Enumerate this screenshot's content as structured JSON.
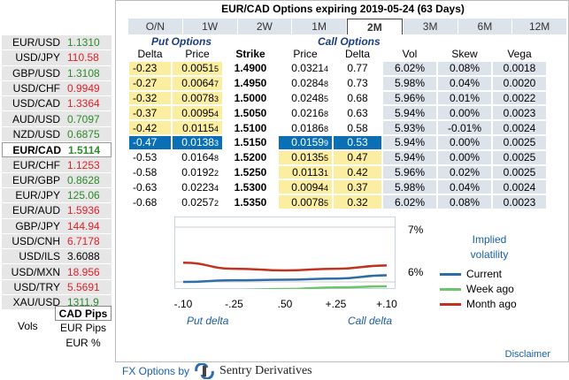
{
  "title": "EUR/CAD Options expiring 2019-05-24 (63 Days)",
  "tabs": [
    "O/N",
    "1W",
    "2W",
    "1M",
    "2M",
    "3M",
    "6M",
    "12M"
  ],
  "active_tab": "2M",
  "sidebar": {
    "pairs": [
      {
        "name": "EUR/USD",
        "value": "1.1310",
        "dir": "up"
      },
      {
        "name": "USD/JPY",
        "value": "110.58",
        "dir": "down"
      },
      {
        "name": "GBP/USD",
        "value": "1.3108",
        "dir": "up"
      },
      {
        "name": "USD/CHF",
        "value": "0.9949",
        "dir": "down"
      },
      {
        "name": "USD/CAD",
        "value": "1.3364",
        "dir": "down"
      },
      {
        "name": "AUD/USD",
        "value": "0.7097",
        "dir": "up"
      },
      {
        "name": "NZD/USD",
        "value": "0.6875",
        "dir": "up"
      },
      {
        "name": "EUR/CAD",
        "value": "1.5114",
        "dir": "up",
        "active": true
      },
      {
        "name": "EUR/CHF",
        "value": "1.1253",
        "dir": "down"
      },
      {
        "name": "EUR/GBP",
        "value": "0.8628",
        "dir": "up"
      },
      {
        "name": "EUR/JPY",
        "value": "125.06",
        "dir": "up"
      },
      {
        "name": "EUR/AUD",
        "value": "1.5936",
        "dir": "down"
      },
      {
        "name": "GBP/JPY",
        "value": "144.94",
        "dir": "down"
      },
      {
        "name": "USD/CNH",
        "value": "6.7178",
        "dir": "down"
      },
      {
        "name": "USD/ILS",
        "value": "3.6088",
        "dir": "neutral"
      },
      {
        "name": "USD/MXN",
        "value": "18.956",
        "dir": "down"
      },
      {
        "name": "USD/TRY",
        "value": "5.5691",
        "dir": "down"
      },
      {
        "name": "XAU/USD",
        "value": "1311.9",
        "dir": "up"
      }
    ],
    "vols_label": "Vols",
    "quote_options": [
      "CAD Pips",
      "EUR Pips",
      "EUR %"
    ],
    "selected_quote": "CAD Pips"
  },
  "table": {
    "put_header": "Put Options",
    "call_header": "Call Options",
    "columns": [
      "Delta",
      "Price",
      "Strike",
      "Price",
      "Delta",
      "Vol",
      "Skew",
      "Vega"
    ],
    "rows": [
      {
        "pdelta": "-0.23",
        "pprice": "0.0051",
        "pprice_s": "5",
        "strike": "1.4900",
        "cprice": "0.0321",
        "cprice_s": "4",
        "cdelta": "0.77",
        "vol": "6.02%",
        "skew": "0.08%",
        "vega": "0.0018",
        "side": "put"
      },
      {
        "pdelta": "-0.27",
        "pprice": "0.0064",
        "pprice_s": "7",
        "strike": "1.4950",
        "cprice": "0.0284",
        "cprice_s": "8",
        "cdelta": "0.73",
        "vol": "5.98%",
        "skew": "0.04%",
        "vega": "0.0020",
        "side": "put"
      },
      {
        "pdelta": "-0.32",
        "pprice": "0.0078",
        "pprice_s": "3",
        "strike": "1.5000",
        "cprice": "0.0248",
        "cprice_s": "5",
        "cdelta": "0.68",
        "vol": "5.96%",
        "skew": "0.01%",
        "vega": "0.0022",
        "side": "put"
      },
      {
        "pdelta": "-0.37",
        "pprice": "0.0095",
        "pprice_s": "4",
        "strike": "1.5050",
        "cprice": "0.0216",
        "cprice_s": "8",
        "cdelta": "0.63",
        "vol": "5.94%",
        "skew": "0.00%",
        "vega": "0.0023",
        "side": "put"
      },
      {
        "pdelta": "-0.42",
        "pprice": "0.0115",
        "pprice_s": "4",
        "strike": "1.5100",
        "cprice": "0.0186",
        "cprice_s": "8",
        "cdelta": "0.58",
        "vol": "5.93%",
        "skew": "-0.01%",
        "vega": "0.0024",
        "side": "put"
      },
      {
        "pdelta": "-0.47",
        "pprice": "0.0138",
        "pprice_s": "3",
        "strike": "1.5150",
        "cprice": "0.0159",
        "cprice_s": "9",
        "cdelta": "0.53",
        "vol": "5.94%",
        "skew": "0.00%",
        "vega": "0.0025",
        "side": "atm"
      },
      {
        "pdelta": "-0.53",
        "pprice": "0.0164",
        "pprice_s": "8",
        "strike": "1.5200",
        "cprice": "0.0135",
        "cprice_s": "5",
        "cdelta": "0.47",
        "vol": "5.94%",
        "skew": "0.00%",
        "vega": "0.0025",
        "side": "call"
      },
      {
        "pdelta": "-0.58",
        "pprice": "0.0192",
        "pprice_s": "2",
        "strike": "1.5250",
        "cprice": "0.0113",
        "cprice_s": "1",
        "cdelta": "0.42",
        "vol": "5.96%",
        "skew": "0.02%",
        "vega": "0.0025",
        "side": "call"
      },
      {
        "pdelta": "-0.63",
        "pprice": "0.0223",
        "pprice_s": "4",
        "strike": "1.5300",
        "cprice": "0.0094",
        "cprice_s": "4",
        "cdelta": "0.37",
        "vol": "5.98%",
        "skew": "0.04%",
        "vega": "0.0024",
        "side": "call"
      },
      {
        "pdelta": "-0.68",
        "pprice": "0.0257",
        "pprice_s": "2",
        "strike": "1.5350",
        "cprice": "0.0078",
        "cprice_s": "5",
        "cdelta": "0.32",
        "vol": "6.02%",
        "skew": "0.08%",
        "vega": "0.0023",
        "side": "call"
      }
    ]
  },
  "chart_data": {
    "type": "line",
    "x": [
      -0.1,
      -0.25,
      0.5,
      0.25,
      0.1
    ],
    "x_tick_labels": [
      "-.10",
      "-.25",
      ".50",
      "+.25",
      "+.10"
    ],
    "ylim": [
      6,
      7
    ],
    "y_tick_labels": [
      "7%",
      "6%"
    ],
    "series": [
      {
        "name": "Current",
        "color": "#2e6da8",
        "values": [
          6.0,
          6.03,
          6.04,
          6.06,
          6.12
        ]
      },
      {
        "name": "Week ago",
        "color": "#6cc56c",
        "values": [
          5.82,
          5.85,
          5.87,
          5.9,
          5.92
        ]
      },
      {
        "name": "Month ago",
        "color": "#c0341f",
        "values": [
          6.35,
          6.24,
          6.21,
          6.24,
          6.3
        ]
      }
    ],
    "legend_title": "Implied volatility",
    "xlabel_left": "Put delta",
    "xlabel_right": "Call delta"
  },
  "disclaimer": "Disclaimer",
  "footer": {
    "prefix": "FX Options by",
    "brand": "Sentry Derivatives"
  }
}
